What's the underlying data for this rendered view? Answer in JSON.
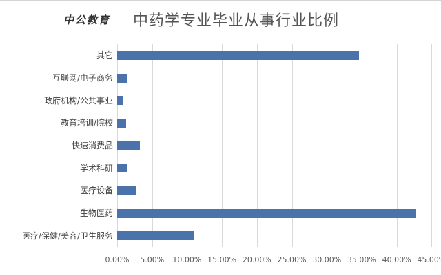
{
  "header": {
    "logo": "中公教育",
    "title": "中药学专业毕业从事行业比例"
  },
  "chart_data": {
    "type": "bar",
    "orientation": "horizontal",
    "title": "中药学专业毕业从事行业比例",
    "categories": [
      "其它",
      "互联网/电子商务",
      "政府机构/公共事业",
      "教育培训/院校",
      "快速消费品",
      "学术科研",
      "医疗设备",
      "生物医药",
      "医疗/保健/美容/卫生服务"
    ],
    "values": [
      34.6,
      1.4,
      0.9,
      1.3,
      3.3,
      1.5,
      2.8,
      42.7,
      10.9
    ],
    "unit": "%",
    "xlabel": "",
    "ylabel": "",
    "xlim": [
      0,
      45
    ],
    "xticks": [
      "0.00%",
      "5.00%",
      "10.00%",
      "15.00%",
      "20.00%",
      "25.00%",
      "30.00%",
      "35.00%",
      "40.00%",
      "45.00%"
    ],
    "grid": true,
    "legend": "none",
    "bar_color": "#4a72ab"
  }
}
